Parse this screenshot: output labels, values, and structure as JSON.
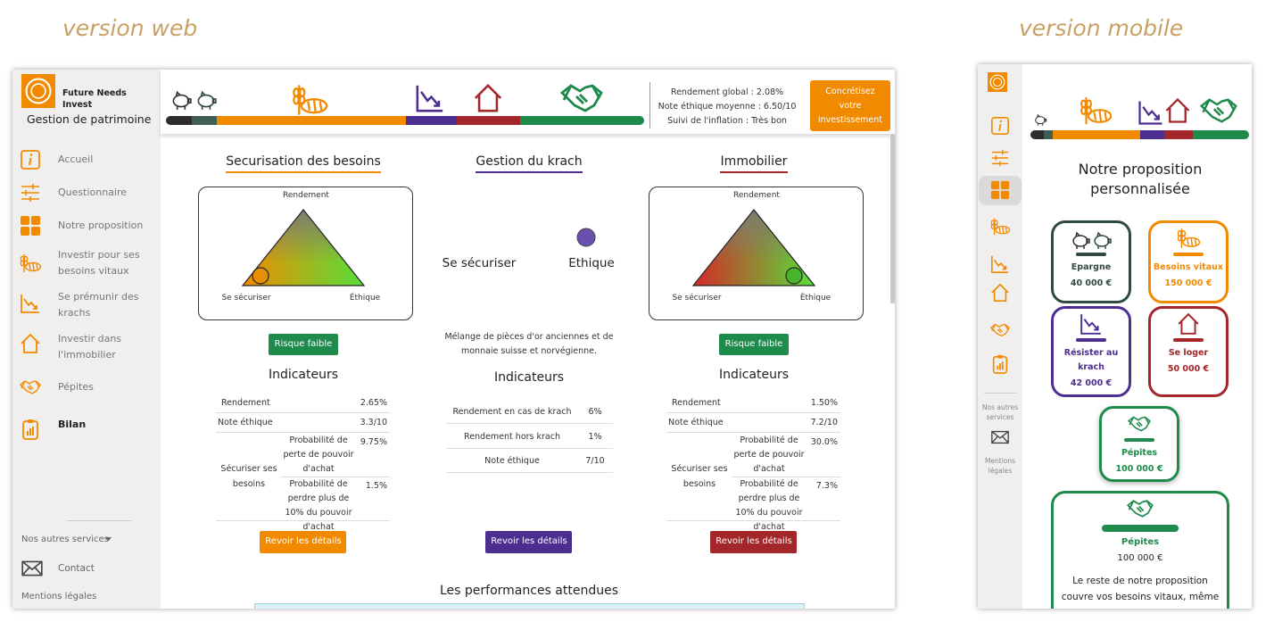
{
  "labels": {
    "web": "version web",
    "mobile": "version mobile"
  },
  "web": {
    "brand": "Future Needs Invest",
    "subtitle": "Gestion de patrimoine",
    "nav": [
      "Accueil",
      "Questionnaire",
      "Notre proposition",
      "Investir pour ses besoins vitaux",
      "Se prémunir des krachs",
      "Investir dans l'immobilier",
      "Pépites",
      "Bilan"
    ],
    "other_services": "Nos autres services",
    "contact": "Contact",
    "legal": "Mentions légales",
    "stats": [
      "Rendement global : 2.08%",
      "Note éthique moyenne : 6.50/10",
      "Suivi de l'inflation : Très bon"
    ],
    "cta": "Concrétisez votre investissement",
    "columns": [
      {
        "title": "Securisation des besoins",
        "axes": [
          "Rendement",
          "Se sécuriser",
          "Éthique"
        ],
        "risk": "Risque faible",
        "indicators": "Indicateurs",
        "rows": [
          [
            "Rendement",
            "2.65%"
          ],
          [
            "Note éthique",
            "3.3/10"
          ]
        ],
        "group": "Sécuriser ses besoins",
        "group_rows": [
          [
            "Probabilité de perte de pouvoir d'achat",
            "9.75%"
          ],
          [
            "Probabilité de perdre plus de 10% du pouvoir d'achat",
            "1.5%"
          ]
        ],
        "button": "Revoir les détails"
      },
      {
        "title": "Gestion du krach",
        "slider": [
          "Se sécuriser",
          "Ethique"
        ],
        "description": "Mélange de pièces d'or anciennes et de monnaie suisse et norvégienne.",
        "indicators": "Indicateurs",
        "rows": [
          [
            "Rendement en cas de krach",
            "6%"
          ],
          [
            "Rendement hors krach",
            "1%"
          ],
          [
            "Note éthique",
            "7/10"
          ]
        ],
        "button": "Revoir les détails"
      },
      {
        "title": "Immobilier",
        "axes": [
          "Rendement",
          "Se sécuriser",
          "Éthique"
        ],
        "risk": "Risque faible",
        "indicators": "Indicateurs",
        "rows": [
          [
            "Rendement",
            "1.50%"
          ],
          [
            "Note éthique",
            "7.2/10"
          ]
        ],
        "group": "Sécuriser ses besoins",
        "group_rows": [
          [
            "Probabilité de perte de pouvoir d'achat",
            "30.0%"
          ],
          [
            "Probabilité de perdre plus de 10% du pouvoir d'achat",
            "7.3%"
          ]
        ],
        "button": "Revoir les détails"
      }
    ],
    "performances": "Les performances attendues"
  },
  "mobile": {
    "other_services": "Nos autres services",
    "legal": "Mentions légales",
    "title": "Notre proposition personnalisée",
    "cards": [
      {
        "name": "Epargne",
        "amount": "40 000 €"
      },
      {
        "name": "Besoins vitaux",
        "amount": "150 000 €"
      },
      {
        "name": "Résister au krach",
        "amount": "42 000 €"
      },
      {
        "name": "Se loger",
        "amount": "50 000 €"
      },
      {
        "name": "Pépites",
        "amount": "100 000 €"
      }
    ],
    "detail": {
      "name": "Pépites",
      "amount": "100 000 €",
      "text": "Le reste de notre proposition couvre vos besoins vitaux, même en cas de"
    }
  }
}
